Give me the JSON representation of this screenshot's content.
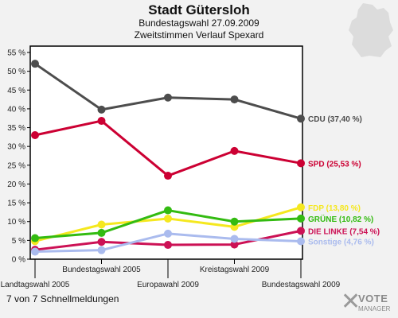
{
  "header": {
    "title": "Stadt Gütersloh",
    "subtitle1": "Bundestagswahl 27.09.2009",
    "subtitle2": "Zweitstimmen Verlauf Spexard"
  },
  "footer": {
    "text": "7 von 7 Schnellmeldungen"
  },
  "brand": {
    "logo_text": "VOTE MANAGER"
  },
  "colors": {
    "background": "#f2f2f2",
    "plot_bg": "#ffffff",
    "axis": "#000000"
  },
  "chart_data": {
    "type": "line",
    "categories": [
      "Landtagswahl 2005",
      "Bundestagswahl 2005",
      "Europawahl 2009",
      "Kreistagswahl 2009",
      "Bundestagswahl 2009"
    ],
    "ylim": [
      0,
      55
    ],
    "yticks": [
      0,
      5,
      10,
      15,
      20,
      25,
      30,
      35,
      40,
      45,
      50,
      55
    ],
    "ytick_labels": [
      "0 %",
      "5 %",
      "10 %",
      "15 %",
      "20 %",
      "25 %",
      "30 %",
      "35 %",
      "40 %",
      "45 %",
      "50 %",
      "55 %"
    ],
    "grid": false,
    "series": [
      {
        "name": "CDU",
        "label": "CDU (37,40 %)",
        "color": "#4d4d4d",
        "values": [
          52.0,
          39.8,
          43.0,
          42.5,
          37.4
        ]
      },
      {
        "name": "SPD",
        "label": "SPD (25,53 %)",
        "color": "#cc0033",
        "values": [
          33.0,
          36.8,
          22.2,
          28.8,
          25.53
        ]
      },
      {
        "name": "FDP",
        "label": "FDP (13,80 %)",
        "color": "#f5e81f",
        "values": [
          4.8,
          9.2,
          10.8,
          8.6,
          13.8
        ]
      },
      {
        "name": "GRÜNE",
        "label": "GRÜNE (10,82 %)",
        "color": "#33bb11",
        "values": [
          5.6,
          7.0,
          13.0,
          10.0,
          10.82
        ]
      },
      {
        "name": "DIE LINKE",
        "label": "DIE LINKE (7,54 %)",
        "color": "#cc1155",
        "values": [
          2.5,
          4.6,
          3.8,
          3.9,
          7.54
        ]
      },
      {
        "name": "Sonstige",
        "label": "Sonstige (4,76 %)",
        "color": "#aabbee",
        "values": [
          2.0,
          2.4,
          6.8,
          5.4,
          4.76
        ]
      }
    ]
  }
}
